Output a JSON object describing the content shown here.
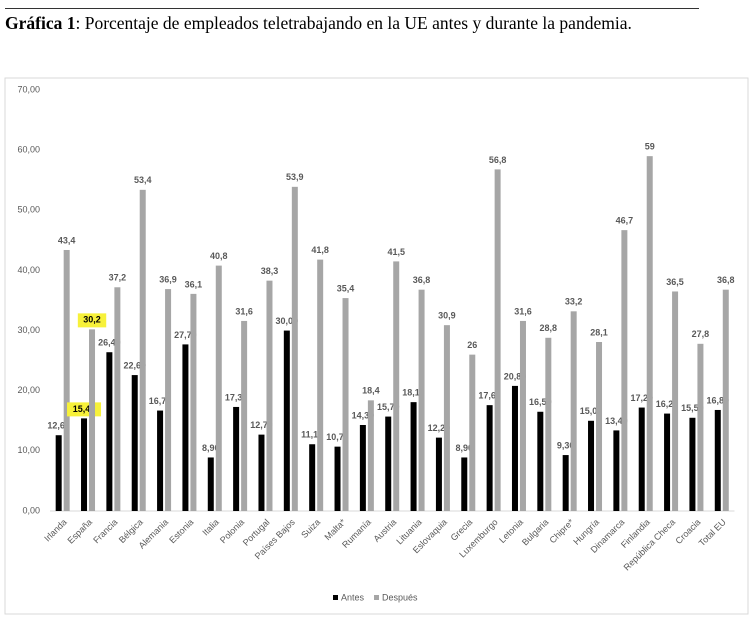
{
  "caption_label": "Gráfica 1",
  "caption": ": Porcentaje de empleados teletrabajando en la UE antes y durante la pandemia.",
  "chart_data": {
    "type": "bar",
    "categories": [
      "Irlanda",
      "España",
      "Francia",
      "Bélgica",
      "Alemania",
      "Estonia",
      "Italia",
      "Polonia",
      "Portugal",
      "Países Bajos",
      "Suiza",
      "Malta*",
      "Rumanía",
      "Austria",
      "Lituania",
      "Eslovaquia",
      "Grecia",
      "Luxemburgo",
      "Letonia",
      "Bulgaria",
      "Chipre*",
      "Hungría",
      "Dinamarca",
      "Finlandia",
      "República Checa",
      "Croacia",
      "Total EU"
    ],
    "series": [
      {
        "name": "Antes",
        "color": "#000000",
        "values": [
          12.6,
          15.4,
          26.4,
          22.6,
          16.7,
          27.7,
          8.9,
          17.3,
          12.7,
          30.0,
          11.1,
          10.7,
          14.3,
          15.7,
          18.1,
          12.2,
          8.9,
          17.6,
          20.8,
          16.5,
          9.3,
          15.0,
          13.4,
          17.2,
          16.2,
          15.5,
          16.8
        ],
        "value_labels": [
          "12,60",
          "15,40",
          "26,40",
          "22,60",
          "16,70",
          "27,70",
          "8,90",
          "17,30",
          "12,70",
          "30,00",
          "11,10",
          "10,70",
          "14,30",
          "15,70",
          "18,10",
          "12,20",
          "8,90",
          "17,60",
          "20,80",
          "16,50",
          "9,30",
          "15,00",
          "13,40",
          "17,20",
          "16,20",
          "15,50",
          "16,80"
        ]
      },
      {
        "name": "Después",
        "color": "#a6a6a6",
        "values": [
          43.4,
          30.2,
          37.2,
          53.4,
          36.9,
          36.1,
          40.8,
          31.6,
          38.3,
          53.9,
          41.8,
          35.4,
          18.4,
          41.5,
          36.8,
          30.9,
          26,
          56.8,
          31.6,
          28.8,
          33.2,
          28.1,
          46.7,
          59,
          36.5,
          27.8,
          36.8
        ],
        "value_labels": [
          "43,4",
          "30,2",
          "37,2",
          "53,4",
          "36,9",
          "36,1",
          "40,8",
          "31,6",
          "38,3",
          "53,9",
          "41,8",
          "35,4",
          "18,4",
          "41,5",
          "36,8",
          "30,9",
          "26",
          "56,8",
          "31,6",
          "28,8",
          "33,2",
          "28,1",
          "46,7",
          "59",
          "36,5",
          "27,8",
          "36,8"
        ]
      }
    ],
    "ylim": [
      0,
      70
    ],
    "yticks": [
      {
        "value": 0,
        "label": "0,00"
      },
      {
        "value": 10,
        "label": "10,00"
      },
      {
        "value": 20,
        "label": "20,00"
      },
      {
        "value": 30,
        "label": "30,00"
      },
      {
        "value": 40,
        "label": "40,00"
      },
      {
        "value": 50,
        "label": "50,00"
      },
      {
        "value": 60,
        "label": "60,00"
      },
      {
        "value": 70,
        "label": "70,00"
      }
    ],
    "grid": false,
    "legend": "bottom",
    "highlighted_categories": [
      "España"
    ],
    "highlight_color": "#f7f13a"
  }
}
